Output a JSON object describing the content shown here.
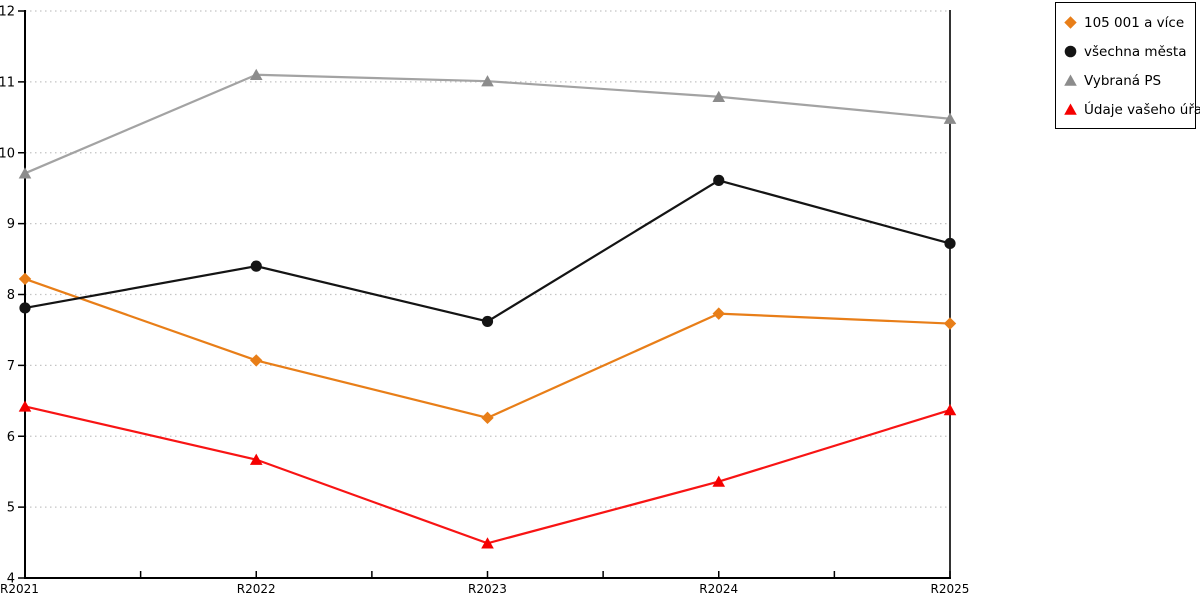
{
  "chart_data": {
    "type": "line",
    "title": "",
    "xlabel": "",
    "ylabel": "",
    "categories": [
      "R2021",
      "R2022",
      "R2023",
      "R2024",
      "R2025"
    ],
    "series": [
      {
        "name": "105 001 a více",
        "marker": "diamond",
        "color": "#E87E18",
        "values": [
          8.22,
          7.07,
          6.26,
          7.73,
          7.59
        ]
      },
      {
        "name": "všechna města",
        "marker": "circle",
        "color": "#141414",
        "values": [
          7.81,
          8.4,
          7.62,
          9.61,
          8.72
        ]
      },
      {
        "name": "Vybraná PS",
        "marker": "triangle",
        "color": "#A3A3A3",
        "marker_color": "#8C8C8C",
        "values": [
          9.71,
          11.1,
          11.01,
          10.79,
          10.48
        ]
      },
      {
        "name": "Údaje vašeho úřadu",
        "marker": "triangle",
        "color": "#F81414",
        "marker_color": "#F50000",
        "values": [
          6.42,
          5.67,
          4.49,
          5.36,
          6.37
        ]
      }
    ],
    "ylim": [
      4,
      12
    ],
    "yticks": [
      4,
      5,
      6,
      7,
      8,
      9,
      10,
      11,
      12
    ],
    "grid": "horizontal-dotted",
    "legend_position": "outside-top-right"
  },
  "colors": {
    "background": "#FFFFFF",
    "axis": "#000000",
    "gridline": "#C4C4C4",
    "legend_border": "#000000"
  }
}
